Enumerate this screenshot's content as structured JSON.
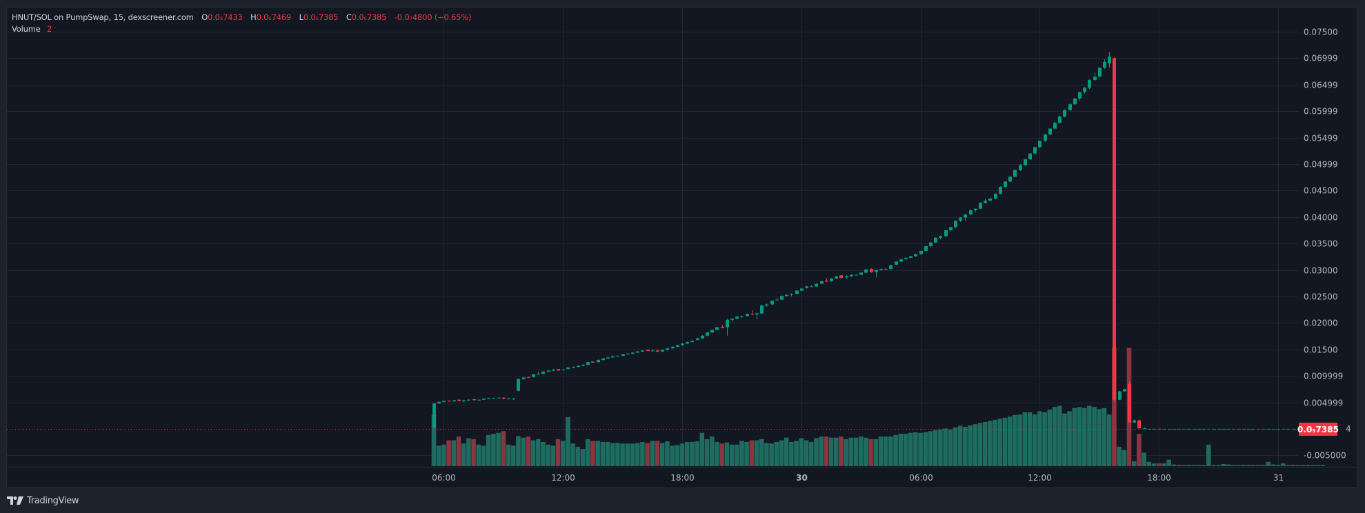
{
  "legend": {
    "symbol": "HNUT/SOL on PumpSwap, 15, dexscreener.com",
    "open_label": "O",
    "open": "0.0₅7433",
    "high_label": "H",
    "high": "0.0₅7469",
    "low_label": "L",
    "low": "0.0₅7385",
    "close_label": "C",
    "close": "0.0₅7385",
    "change": "-0.0₇4800 (−0.65%)",
    "volume_label": "Volume",
    "volume": "2"
  },
  "price_tag": {
    "value": "0.0₅7385",
    "suffix": "4"
  },
  "branding": {
    "logo_text": "TradingView"
  },
  "colors": {
    "up": "#089981",
    "down": "#f23645",
    "vol_up": "#1e6b5f",
    "vol_down": "#8c3440",
    "grid": "#232733",
    "bg": "#131722",
    "frame": "#1e222d"
  },
  "chart_data": {
    "type": "candlestick",
    "title": "HNUT/SOL on PumpSwap, 15, dexscreener.com",
    "interval": "15m",
    "y_ticks": [
      "0.07500",
      "0.06999",
      "0.06499",
      "0.05999",
      "0.05499",
      "0.04999",
      "0.04500",
      "0.04000",
      "0.03500",
      "0.03000",
      "0.02500",
      "0.02000",
      "0.01500",
      "0.009999",
      "0.004999",
      "-0.005000"
    ],
    "y_tick_values": [
      0.075,
      0.07,
      0.065,
      0.06,
      0.055,
      0.05,
      0.045,
      0.04,
      0.035,
      0.03,
      0.025,
      0.02,
      0.015,
      0.01,
      0.005,
      -0.005
    ],
    "x_ticks": [
      {
        "label": "06:00",
        "index": 2
      },
      {
        "label": "12:00",
        "index": 26
      },
      {
        "label": "18:00",
        "index": 50
      },
      {
        "label": "30",
        "index": 74,
        "bold": true
      },
      {
        "label": "06:00",
        "index": 98
      },
      {
        "label": "12:00",
        "index": 122
      },
      {
        "label": "18:00",
        "index": 146
      },
      {
        "label": "31",
        "index": 170
      }
    ],
    "ylim": [
      -0.0075,
      0.0785
    ],
    "last_price": 7.4e-06,
    "candles": [
      [
        0.0002,
        0.0049,
        0.0001,
        0.0048,
        95
      ],
      [
        0.0048,
        0.0052,
        0.0047,
        0.0051,
        38
      ],
      [
        0.0051,
        0.0054,
        0.005,
        0.0053,
        40
      ],
      [
        0.0053,
        0.0054,
        0.0052,
        0.0052,
        48
      ],
      [
        0.0052,
        0.0055,
        0.0051,
        0.0054,
        48
      ],
      [
        0.0055,
        0.0056,
        0.0052,
        0.0053,
        55
      ],
      [
        0.0052,
        0.0055,
        0.0051,
        0.0054,
        42
      ],
      [
        0.0054,
        0.0056,
        0.0053,
        0.0055,
        52
      ],
      [
        0.0056,
        0.0056,
        0.0054,
        0.0054,
        50
      ],
      [
        0.0055,
        0.0056,
        0.0054,
        0.0055,
        40
      ],
      [
        0.0055,
        0.0058,
        0.0054,
        0.0057,
        38
      ],
      [
        0.0057,
        0.0059,
        0.0056,
        0.0058,
        58
      ],
      [
        0.0058,
        0.0059,
        0.0057,
        0.0058,
        60
      ],
      [
        0.0058,
        0.006,
        0.0057,
        0.0059,
        62
      ],
      [
        0.0059,
        0.006,
        0.0056,
        0.0057,
        65
      ],
      [
        0.0057,
        0.0059,
        0.0056,
        0.0057,
        40
      ],
      [
        0.0057,
        0.0058,
        0.0055,
        0.0057,
        38
      ],
      [
        0.0072,
        0.0095,
        0.0071,
        0.0094,
        56
      ],
      [
        0.0094,
        0.0098,
        0.0093,
        0.0097,
        53
      ],
      [
        0.0098,
        0.0099,
        0.0096,
        0.0097,
        55
      ],
      [
        0.0098,
        0.0104,
        0.0097,
        0.0103,
        48
      ],
      [
        0.0103,
        0.0108,
        0.0102,
        0.0104,
        50
      ],
      [
        0.0104,
        0.0109,
        0.0103,
        0.0108,
        45
      ],
      [
        0.0108,
        0.0111,
        0.0107,
        0.011,
        40
      ],
      [
        0.011,
        0.0113,
        0.0109,
        0.0112,
        38
      ],
      [
        0.0113,
        0.0112,
        0.011,
        0.011,
        50
      ],
      [
        0.0112,
        0.0113,
        0.011,
        0.0112,
        47
      ],
      [
        0.0113,
        0.0117,
        0.0112,
        0.0116,
        91
      ],
      [
        0.0116,
        0.0118,
        0.0115,
        0.0117,
        42
      ],
      [
        0.0117,
        0.012,
        0.0116,
        0.0119,
        36
      ],
      [
        0.0119,
        0.0122,
        0.0118,
        0.0121,
        32
      ],
      [
        0.0121,
        0.0127,
        0.012,
        0.0126,
        50
      ],
      [
        0.0127,
        0.0128,
        0.0125,
        0.0125,
        47
      ],
      [
        0.0126,
        0.0131,
        0.0125,
        0.013,
        47
      ],
      [
        0.013,
        0.0134,
        0.0129,
        0.0133,
        45
      ],
      [
        0.0133,
        0.0136,
        0.0132,
        0.0135,
        45
      ],
      [
        0.0135,
        0.0139,
        0.0134,
        0.0137,
        43
      ],
      [
        0.0138,
        0.0139,
        0.0137,
        0.0138,
        43
      ],
      [
        0.0138,
        0.0142,
        0.0137,
        0.0141,
        42
      ],
      [
        0.0141,
        0.0143,
        0.014,
        0.0142,
        42
      ],
      [
        0.0142,
        0.0145,
        0.0141,
        0.0144,
        42
      ],
      [
        0.0144,
        0.0147,
        0.0143,
        0.0146,
        43
      ],
      [
        0.0146,
        0.0149,
        0.0145,
        0.0148,
        45
      ],
      [
        0.0149,
        0.015,
        0.0147,
        0.0147,
        43
      ],
      [
        0.0147,
        0.0151,
        0.0146,
        0.0148,
        47
      ],
      [
        0.0148,
        0.015,
        0.0145,
        0.0146,
        47
      ],
      [
        0.0146,
        0.015,
        0.0145,
        0.0149,
        43
      ],
      [
        0.0149,
        0.0153,
        0.0148,
        0.0152,
        46
      ],
      [
        0.0152,
        0.0156,
        0.0151,
        0.0155,
        38
      ],
      [
        0.0155,
        0.0159,
        0.0154,
        0.0158,
        39
      ],
      [
        0.0158,
        0.0162,
        0.0157,
        0.0161,
        42
      ],
      [
        0.0161,
        0.0165,
        0.016,
        0.0164,
        45
      ],
      [
        0.0164,
        0.0168,
        0.0163,
        0.0166,
        45
      ],
      [
        0.0168,
        0.0172,
        0.0167,
        0.0171,
        46
      ],
      [
        0.0171,
        0.0177,
        0.017,
        0.0176,
        62
      ],
      [
        0.0176,
        0.0183,
        0.0175,
        0.0182,
        50
      ],
      [
        0.0182,
        0.0188,
        0.0181,
        0.0187,
        55
      ],
      [
        0.0187,
        0.0193,
        0.0186,
        0.0192,
        45
      ],
      [
        0.0193,
        0.0196,
        0.019,
        0.0191,
        42
      ],
      [
        0.0192,
        0.0208,
        0.0176,
        0.0206,
        44
      ],
      [
        0.0206,
        0.0209,
        0.0202,
        0.0208,
        40
      ],
      [
        0.0208,
        0.0213,
        0.0207,
        0.0212,
        40
      ],
      [
        0.0212,
        0.0214,
        0.021,
        0.0213,
        47
      ],
      [
        0.0213,
        0.0218,
        0.0212,
        0.0217,
        45
      ],
      [
        0.0217,
        0.0224,
        0.0215,
        0.0216,
        48
      ],
      [
        0.0216,
        0.022,
        0.0207,
        0.0218,
        48
      ],
      [
        0.0218,
        0.0234,
        0.0217,
        0.0233,
        50
      ],
      [
        0.0233,
        0.0237,
        0.0231,
        0.0235,
        43
      ],
      [
        0.0235,
        0.0243,
        0.0234,
        0.0242,
        42
      ],
      [
        0.0243,
        0.0247,
        0.0242,
        0.0244,
        45
      ],
      [
        0.0244,
        0.0252,
        0.0243,
        0.0251,
        48
      ],
      [
        0.0251,
        0.0255,
        0.025,
        0.0253,
        53
      ],
      [
        0.0254,
        0.0256,
        0.025,
        0.0255,
        45
      ],
      [
        0.0255,
        0.0262,
        0.0254,
        0.0261,
        47
      ],
      [
        0.0261,
        0.0266,
        0.026,
        0.0265,
        52
      ],
      [
        0.0266,
        0.027,
        0.0265,
        0.0269,
        48
      ],
      [
        0.0269,
        0.0271,
        0.0268,
        0.0269,
        45
      ],
      [
        0.0269,
        0.0275,
        0.0268,
        0.0274,
        52
      ],
      [
        0.0274,
        0.028,
        0.0273,
        0.0279,
        55
      ],
      [
        0.028,
        0.0284,
        0.0278,
        0.0278,
        55
      ],
      [
        0.0279,
        0.0285,
        0.0278,
        0.0284,
        53
      ],
      [
        0.0284,
        0.0289,
        0.0283,
        0.0288,
        53
      ],
      [
        0.029,
        0.029,
        0.0284,
        0.0285,
        55
      ],
      [
        0.0286,
        0.029,
        0.0283,
        0.0288,
        50
      ],
      [
        0.0288,
        0.0292,
        0.0287,
        0.0291,
        53
      ],
      [
        0.0291,
        0.0292,
        0.029,
        0.0291,
        53
      ],
      [
        0.0291,
        0.0296,
        0.029,
        0.0295,
        55
      ],
      [
        0.0295,
        0.0302,
        0.0294,
        0.0301,
        53
      ],
      [
        0.0302,
        0.0303,
        0.0295,
        0.0296,
        50
      ],
      [
        0.0296,
        0.03,
        0.0286,
        0.03,
        50
      ],
      [
        0.03,
        0.0303,
        0.0299,
        0.0302,
        55
      ],
      [
        0.0302,
        0.0303,
        0.03,
        0.0302,
        55
      ],
      [
        0.0302,
        0.031,
        0.0301,
        0.0309,
        55
      ],
      [
        0.031,
        0.0317,
        0.0309,
        0.0316,
        58
      ],
      [
        0.0316,
        0.0321,
        0.0315,
        0.032,
        60
      ],
      [
        0.0321,
        0.0324,
        0.0319,
        0.0323,
        60
      ],
      [
        0.0323,
        0.0327,
        0.0322,
        0.0326,
        62
      ],
      [
        0.0326,
        0.0331,
        0.0325,
        0.033,
        63
      ],
      [
        0.033,
        0.0337,
        0.0329,
        0.0336,
        62
      ],
      [
        0.0336,
        0.0346,
        0.0335,
        0.0345,
        63
      ],
      [
        0.0345,
        0.0353,
        0.0343,
        0.0352,
        65
      ],
      [
        0.0352,
        0.0362,
        0.0351,
        0.0361,
        67
      ],
      [
        0.0361,
        0.0365,
        0.0358,
        0.0364,
        68
      ],
      [
        0.0364,
        0.0376,
        0.0362,
        0.0375,
        70
      ],
      [
        0.0375,
        0.0382,
        0.0373,
        0.0381,
        68
      ],
      [
        0.0381,
        0.0394,
        0.0379,
        0.0393,
        72
      ],
      [
        0.0393,
        0.04,
        0.0391,
        0.0399,
        75
      ],
      [
        0.0399,
        0.0406,
        0.0393,
        0.0405,
        73
      ],
      [
        0.0405,
        0.0414,
        0.0403,
        0.0413,
        76
      ],
      [
        0.0413,
        0.0416,
        0.0409,
        0.0416,
        78
      ],
      [
        0.0416,
        0.0428,
        0.0415,
        0.0427,
        80
      ],
      [
        0.0427,
        0.0434,
        0.0425,
        0.0431,
        82
      ],
      [
        0.0431,
        0.0437,
        0.043,
        0.0435,
        84
      ],
      [
        0.0435,
        0.0445,
        0.0434,
        0.0444,
        86
      ],
      [
        0.0444,
        0.0458,
        0.0443,
        0.0457,
        88
      ],
      [
        0.0457,
        0.0468,
        0.0456,
        0.0467,
        90
      ],
      [
        0.0467,
        0.0478,
        0.0466,
        0.0476,
        92
      ],
      [
        0.0476,
        0.049,
        0.0475,
        0.0489,
        95
      ],
      [
        0.0489,
        0.05,
        0.0487,
        0.0498,
        96
      ],
      [
        0.0498,
        0.051,
        0.0496,
        0.0509,
        100
      ],
      [
        0.0509,
        0.0521,
        0.0508,
        0.052,
        100
      ],
      [
        0.052,
        0.0533,
        0.0518,
        0.0532,
        96
      ],
      [
        0.0532,
        0.0545,
        0.053,
        0.0544,
        102
      ],
      [
        0.0544,
        0.0557,
        0.0542,
        0.0556,
        100
      ],
      [
        0.0556,
        0.0568,
        0.0554,
        0.0567,
        105
      ],
      [
        0.0567,
        0.058,
        0.0565,
        0.0578,
        110
      ],
      [
        0.0578,
        0.0592,
        0.0576,
        0.059,
        112
      ],
      [
        0.059,
        0.0603,
        0.0588,
        0.0602,
        98
      ],
      [
        0.0602,
        0.0615,
        0.06,
        0.0613,
        102
      ],
      [
        0.0613,
        0.0625,
        0.0611,
        0.0624,
        108
      ],
      [
        0.0624,
        0.0637,
        0.062,
        0.0636,
        110
      ],
      [
        0.0636,
        0.0646,
        0.0633,
        0.0644,
        108
      ],
      [
        0.0644,
        0.066,
        0.0642,
        0.0659,
        112
      ],
      [
        0.0659,
        0.0673,
        0.0657,
        0.0665,
        110
      ],
      [
        0.0665,
        0.0683,
        0.0664,
        0.0682,
        106
      ],
      [
        0.0682,
        0.0698,
        0.068,
        0.0693,
        108
      ],
      [
        0.069,
        0.0712,
        0.0682,
        0.0703,
        96
      ],
      [
        0.07,
        0.0702,
        0.005,
        0.0055,
        220
      ],
      [
        0.0055,
        0.0072,
        0.0054,
        0.0071,
        36
      ],
      [
        0.0071,
        0.0076,
        0.007,
        0.0075,
        30
      ],
      [
        0.0085,
        0.009,
        0.0012,
        0.0012,
        220
      ],
      [
        0.0012,
        0.0018,
        0.0011,
        0.0016,
        9
      ],
      [
        0.0016,
        0.0018,
        0.0001,
        0.0001,
        60
      ],
      [
        0.0001,
        0.0003,
        0.0,
        0.0001,
        25
      ],
      [
        1e-05,
        3e-05,
        1e-05,
        2e-05,
        8
      ],
      [
        2e-05,
        3e-05,
        1e-05,
        2e-05,
        5
      ],
      [
        2e-05,
        2e-05,
        1e-05,
        1e-05,
        5
      ],
      [
        1e-05,
        2e-05,
        1e-05,
        1e-05,
        5
      ],
      [
        1e-05,
        2e-05,
        1e-05,
        1e-05,
        12
      ],
      [
        1e-05,
        2e-05,
        1e-05,
        1e-05,
        3
      ],
      [
        1e-05,
        2e-05,
        1e-05,
        1e-05,
        2
      ],
      [
        1e-05,
        2e-05,
        1e-05,
        1e-05,
        2
      ],
      [
        1e-05,
        2e-05,
        1e-05,
        1e-05,
        2
      ],
      [
        1e-05,
        2e-05,
        1e-05,
        1e-05,
        2
      ],
      [
        1e-05,
        2e-05,
        1e-05,
        1e-05,
        2
      ],
      [
        1e-05,
        2e-05,
        1e-05,
        1e-05,
        2
      ],
      [
        1e-05,
        2e-05,
        1e-05,
        1e-05,
        40
      ],
      [
        1e-05,
        2e-05,
        1e-05,
        1e-05,
        2
      ],
      [
        1e-05,
        2e-05,
        1e-05,
        1e-05,
        2
      ],
      [
        1e-05,
        2e-05,
        1e-05,
        1e-05,
        4
      ],
      [
        1e-05,
        2e-05,
        1e-05,
        1e-05,
        3
      ],
      [
        1e-05,
        2e-05,
        1e-05,
        1e-05,
        2
      ],
      [
        1e-05,
        2e-05,
        1e-05,
        1e-05,
        2
      ],
      [
        1e-05,
        2e-05,
        1e-05,
        1e-05,
        2
      ],
      [
        1e-05,
        2e-05,
        1e-05,
        1e-05,
        2
      ],
      [
        1e-05,
        2e-05,
        1e-05,
        1e-05,
        2
      ],
      [
        1e-05,
        2e-05,
        1e-05,
        1e-05,
        2
      ],
      [
        1e-05,
        2e-05,
        1e-05,
        1e-05,
        2
      ],
      [
        1e-05,
        2e-05,
        1e-05,
        1e-05,
        8
      ],
      [
        1e-05,
        2e-05,
        1e-05,
        1e-05,
        3
      ],
      [
        1e-05,
        2e-05,
        1e-05,
        1e-05,
        2
      ],
      [
        1e-05,
        2e-05,
        1e-05,
        1e-05,
        5
      ],
      [
        1e-05,
        2e-05,
        1e-05,
        1e-05,
        2
      ],
      [
        1e-05,
        2e-05,
        1e-05,
        1e-05,
        2
      ],
      [
        1e-05,
        2e-05,
        1e-05,
        1e-05,
        2
      ],
      [
        1e-05,
        2e-05,
        1e-05,
        1e-05,
        2
      ],
      [
        1e-05,
        2e-05,
        1e-05,
        1e-05,
        2
      ],
      [
        1e-05,
        2e-05,
        1e-05,
        1e-05,
        2
      ],
      [
        1e-05,
        2e-05,
        1e-05,
        1e-05,
        2
      ],
      [
        1e-05,
        2e-05,
        1e-05,
        1e-05,
        2
      ]
    ]
  }
}
